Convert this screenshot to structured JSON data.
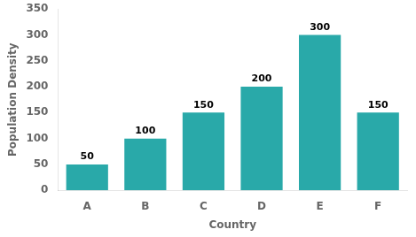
{
  "chart_data": {
    "type": "bar",
    "categories": [
      "A",
      "B",
      "C",
      "D",
      "E",
      "F"
    ],
    "values": [
      50,
      100,
      150,
      200,
      300,
      150
    ],
    "color": "#29A9A9",
    "xlabel": "Country",
    "ylabel": "Population Density",
    "ylim": [
      0,
      350
    ],
    "yticks": [
      0,
      50,
      100,
      150,
      200,
      250,
      300,
      350
    ],
    "grid": false,
    "data_labels": true
  }
}
